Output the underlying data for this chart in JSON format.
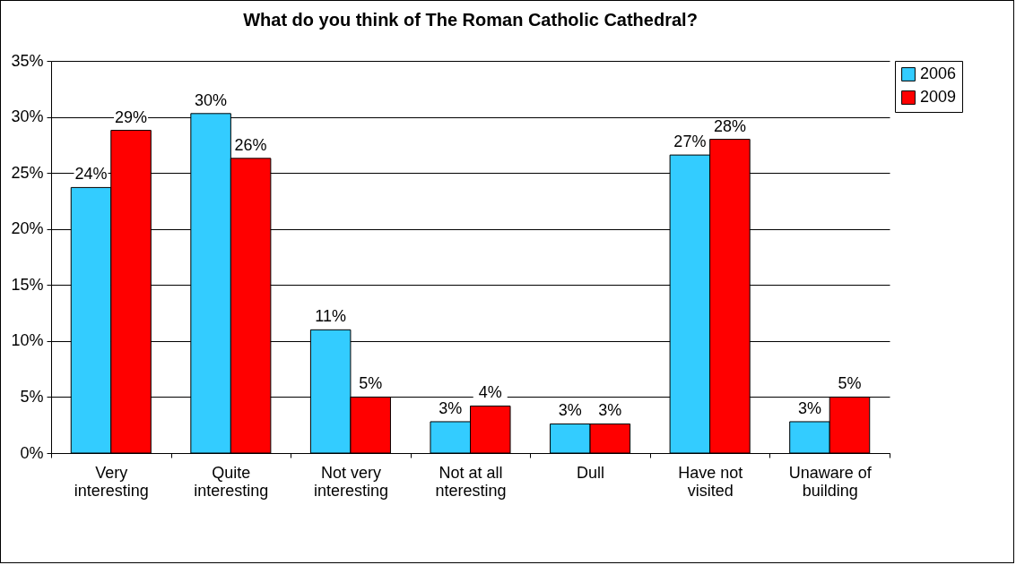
{
  "chart_data": {
    "type": "bar",
    "title": "What do you think of The Roman Catholic Cathedral?",
    "categories": [
      "Very interesting",
      "Quite interesting",
      "Not very interesting",
      "Not at all nteresting",
      "Dull",
      "Have not visited",
      "Unaware of building"
    ],
    "series": [
      {
        "name": "2006",
        "color": "#33ccff",
        "values": [
          23.7,
          30.3,
          11.0,
          2.8,
          2.6,
          26.6,
          2.8
        ],
        "value_labels": [
          "24%",
          "30%",
          "11%",
          "3%",
          "3%",
          "27%",
          "3%"
        ]
      },
      {
        "name": "2009",
        "color": "#ff0000",
        "values": [
          28.8,
          26.3,
          5.0,
          4.2,
          2.6,
          28.0,
          5.0
        ],
        "value_labels": [
          "29%",
          "26%",
          "5%",
          "4%",
          "3%",
          "28%",
          "5%"
        ]
      }
    ],
    "ylim": [
      0,
      35
    ],
    "yticks": [
      {
        "value": 0,
        "label": "0%"
      },
      {
        "value": 5,
        "label": "5%"
      },
      {
        "value": 10,
        "label": "10%"
      },
      {
        "value": 15,
        "label": "15%"
      },
      {
        "value": 20,
        "label": "20%"
      },
      {
        "value": 25,
        "label": "25%"
      },
      {
        "value": 30,
        "label": "30%"
      },
      {
        "value": 35,
        "label": "35%"
      }
    ],
    "grid": "y",
    "legend": "right"
  }
}
